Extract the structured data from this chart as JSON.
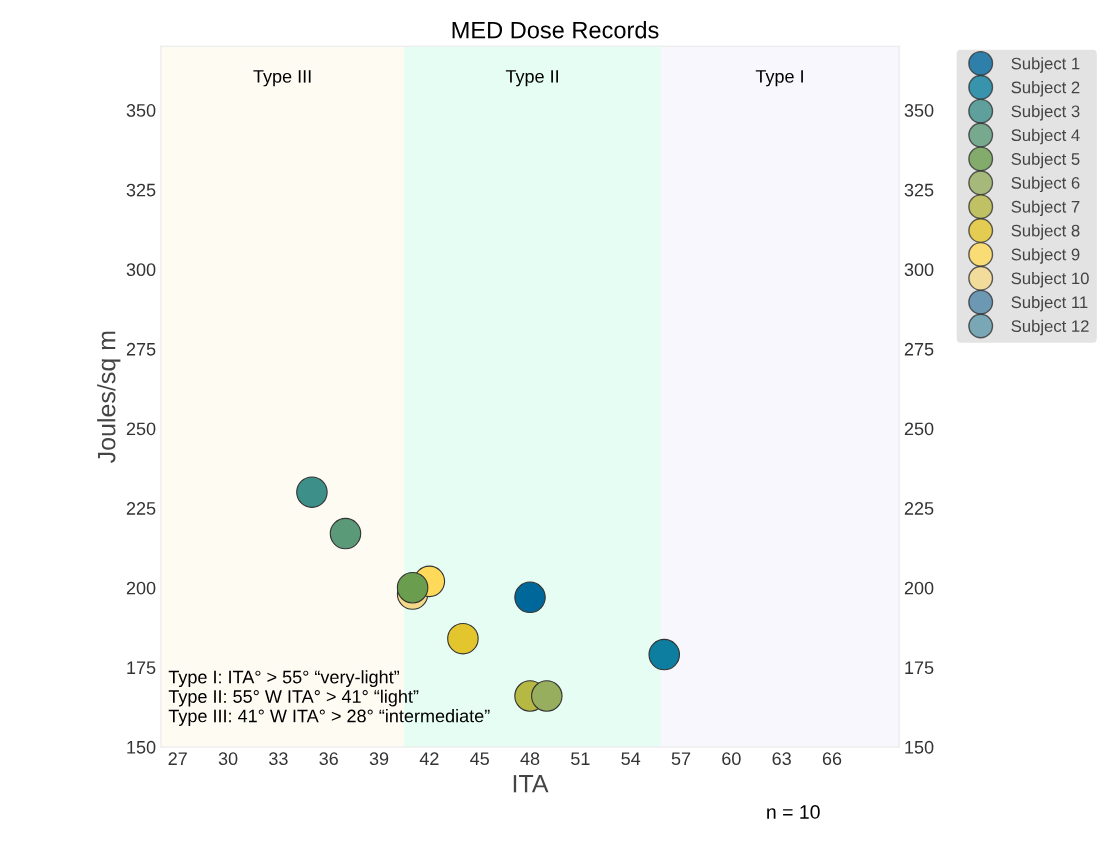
{
  "chart_data": {
    "type": "scatter",
    "title": "MED Dose Records",
    "xlabel": "ITA",
    "ylabel": "Joules/sq m",
    "xlim": [
      26,
      70
    ],
    "xticks": [
      27,
      30,
      33,
      36,
      39,
      42,
      45,
      48,
      51,
      54,
      57,
      60,
      63,
      66
    ],
    "ylim": [
      150,
      370
    ],
    "yticks": [
      150,
      175,
      200,
      225,
      250,
      275,
      300,
      325,
      350
    ],
    "y2lim": [
      150,
      370
    ],
    "y2ticks": [
      150,
      175,
      200,
      225,
      250,
      275,
      300,
      325,
      350
    ],
    "grid": false,
    "legend": "right",
    "marker": "circle",
    "bands": [
      {
        "axis": "x",
        "from": 26,
        "to": 40.5,
        "label": "Type III",
        "color": "#fefbf3"
      },
      {
        "axis": "x",
        "from": 40.5,
        "to": 55.8,
        "label": "Type II",
        "color": "#e5fdf3"
      },
      {
        "axis": "x",
        "from": 55.8,
        "to": 70,
        "label": "Type I",
        "color": "#f7f7fd"
      }
    ],
    "series": [
      {
        "name": "Subject 1",
        "color": "#00679b",
        "x": [
          48
        ],
        "values": [
          197
        ]
      },
      {
        "name": "Subject 2",
        "color": "#0d7e9f",
        "x": [
          56
        ],
        "values": [
          179
        ]
      },
      {
        "name": "Subject 3",
        "color": "#3d8f8a",
        "x": [
          35
        ],
        "values": [
          230
        ]
      },
      {
        "name": "Subject 4",
        "color": "#5a9a78",
        "x": [
          37
        ],
        "values": [
          217
        ]
      },
      {
        "name": "Subject 5",
        "color": "#6a9e4e",
        "x": [
          41
        ],
        "values": [
          200
        ]
      },
      {
        "name": "Subject 6",
        "color": "#97ae5f",
        "x": [
          49
        ],
        "values": [
          166
        ]
      },
      {
        "name": "Subject 7",
        "color": "#b6b844",
        "x": [
          48
        ],
        "values": [
          166
        ]
      },
      {
        "name": "Subject 8",
        "color": "#e3c52e",
        "x": [
          44
        ],
        "values": [
          184
        ]
      },
      {
        "name": "Subject 9",
        "color": "#fed95a",
        "x": [
          42
        ],
        "values": [
          202
        ]
      },
      {
        "name": "Subject 10",
        "color": "#f5d98a",
        "x": [
          41
        ],
        "values": [
          198
        ]
      },
      {
        "name": "Subject 11",
        "color": "#4d85a8"
      },
      {
        "name": "Subject 12",
        "color": "#5e97aa"
      }
    ],
    "annotations": [
      "Type I: ITA° > 55° “very-light”\nType II: 55° W ITA° > 41° “light”\nType III: 41° W ITA° > 28° “intermediate”",
      "n = 10"
    ]
  }
}
